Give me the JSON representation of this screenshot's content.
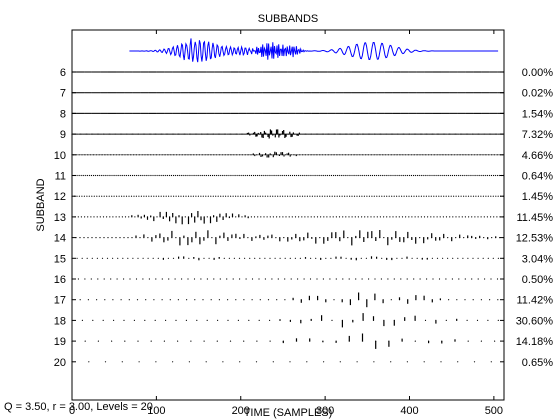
{
  "chart_data": {
    "type": "line",
    "title": "SUBBANDS",
    "xlabel": "TIME (SAMPLES)",
    "ylabel": "SUBBAND",
    "xlim": [
      0,
      512
    ],
    "x_ticks": [
      0,
      100,
      200,
      300,
      400,
      500
    ],
    "grid": false,
    "annotation": "Q = 3.50, r = 3.00, Levels = 20",
    "signal_color": "#0000ff",
    "series": [
      {
        "subband": "6",
        "energy": "0.00%"
      },
      {
        "subband": "7",
        "energy": "0.02%"
      },
      {
        "subband": "8",
        "energy": "1.54%"
      },
      {
        "subband": "9",
        "energy": "7.32%"
      },
      {
        "subband": "10",
        "energy": "4.66%"
      },
      {
        "subband": "11",
        "energy": "0.64%"
      },
      {
        "subband": "12",
        "energy": "1.45%"
      },
      {
        "subband": "13",
        "energy": "11.45%"
      },
      {
        "subband": "14",
        "energy": "12.53%"
      },
      {
        "subband": "15",
        "energy": "3.04%"
      },
      {
        "subband": "16",
        "energy": "0.50%"
      },
      {
        "subband": "17",
        "energy": "11.42%"
      },
      {
        "subband": "18",
        "energy": "30.60%"
      },
      {
        "subband": "19",
        "energy": "14.18%"
      },
      {
        "subband": "20",
        "energy": "0.65%"
      }
    ]
  }
}
